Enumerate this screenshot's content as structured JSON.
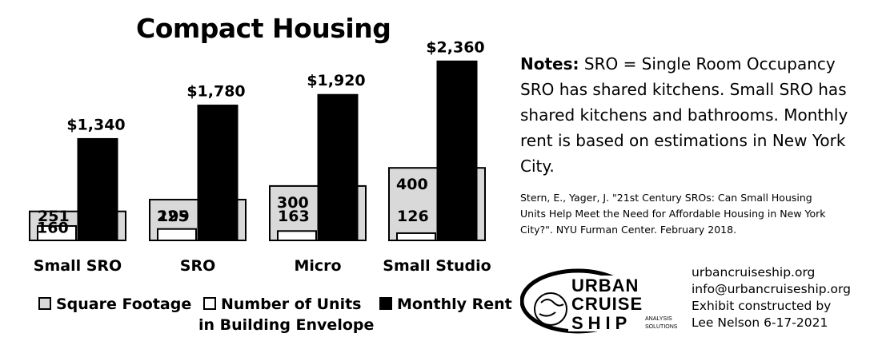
{
  "chart_data": {
    "type": "bar",
    "title": "Compact Housing",
    "categories": [
      "Small SRO",
      "SRO",
      "Micro",
      "Small Studio"
    ],
    "series": [
      {
        "name": "Square Footage",
        "values": [
          160,
          225,
          300,
          400
        ],
        "color": "#d9d9d9"
      },
      {
        "name": "Number of Units in Building Envelope",
        "values": [
          251,
          199,
          163,
          126
        ],
        "color": "#ffffff"
      },
      {
        "name": "Monthly Rent",
        "values": [
          1340,
          1780,
          1920,
          2360
        ],
        "color": "#000000"
      }
    ],
    "rent_labels": [
      "$1,340",
      "$1,780",
      "$1,920",
      "$2,360"
    ],
    "legend": {
      "square_footage": "Square Footage",
      "units_line1": "Number of Units",
      "units_line2": "in Building Envelope",
      "monthly_rent": "Monthly Rent"
    }
  },
  "notes": {
    "label": "Notes:",
    "line1": "SRO = Single Room Occupancy",
    "body": "SRO has shared kitchens. Small SRO has shared kitchens and bathrooms. Monthly rent is based on estimations in New York City."
  },
  "source": "Stern, E., Yager, J. \"21st Century SROs: Can Small Housing Units Help Meet the Need for Affordable Housing in New York City?\". NYU Furman Center. February 2018.",
  "logo": {
    "line1": "URBAN",
    "line2": "CRUISE",
    "line3": "SHIP",
    "sub1": "ANALYSIS",
    "sub2": "SOLUTIONS"
  },
  "contact": {
    "website": "urbancruiseship.org",
    "email": "info@urbancruiseship.org",
    "credit1": "Exhibit constructed by",
    "credit2": "Lee Nelson 6-17-2021"
  }
}
